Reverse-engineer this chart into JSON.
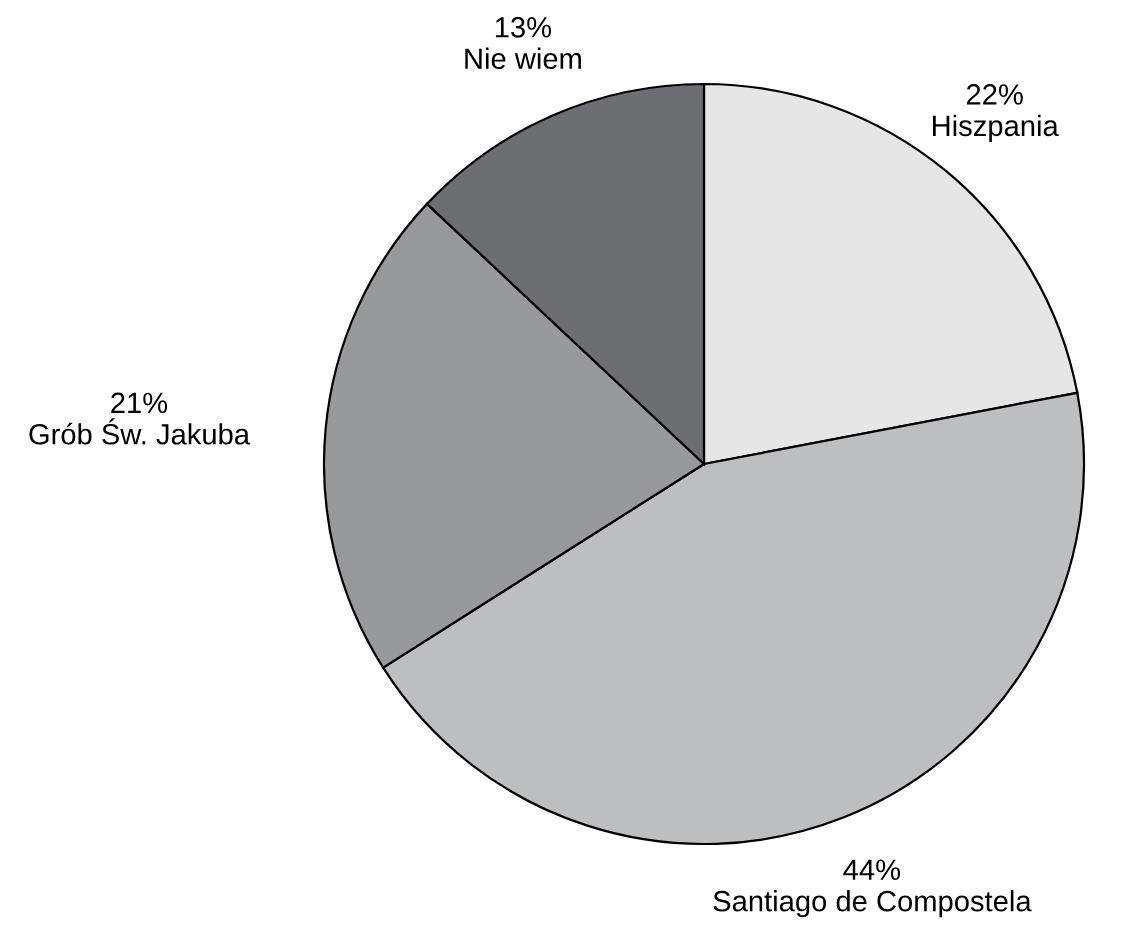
{
  "chart_data": {
    "type": "pie",
    "categories": [
      "Hiszpania",
      "Santiago de Compostela",
      "Grób Św. Jakuba",
      "Nie wiem"
    ],
    "values": [
      22,
      44,
      21,
      13
    ],
    "value_labels": [
      "22%",
      "44%",
      "21%",
      "13%"
    ],
    "colors": [
      "#e6e6e6",
      "#bdbec0",
      "#98999b",
      "#6d6e71"
    ],
    "legend": false
  }
}
